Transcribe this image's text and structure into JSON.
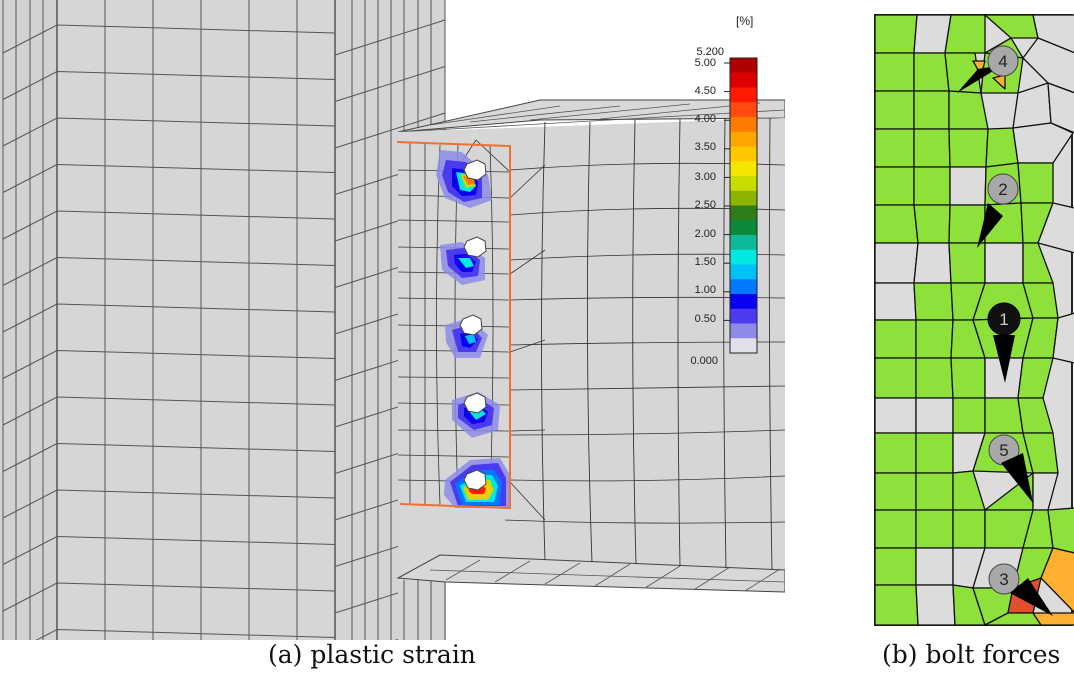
{
  "panel_a": {
    "caption": "(a) plastic strain",
    "legend": {
      "unit": "[%]",
      "max_label": "5.200",
      "min_label": "0.000",
      "tick_labels": [
        "5.00",
        "4.50",
        "4.00",
        "3.50",
        "3.00",
        "2.50",
        "2.00",
        "1.50",
        "1.00",
        "0.50"
      ],
      "colors": [
        "#b00000",
        "#dd0000",
        "#ff1a00",
        "#ff4a10",
        "#ff7a00",
        "#ffa500",
        "#ffc800",
        "#f5e600",
        "#c8dc00",
        "#8cb400",
        "#2e7d1a",
        "#0a8a3a",
        "#10b89a",
        "#00e8e0",
        "#00c0f8",
        "#0078ff",
        "#0a00f0",
        "#4a3af0",
        "#8c8ce8",
        "#e0e0e8"
      ],
      "range": [
        0.0,
        5.2
      ]
    },
    "end_plate_color": "#f07030",
    "bolt_count": 5
  },
  "panel_b": {
    "caption": "(b) bolt forces",
    "bolts": [
      {
        "label": "4",
        "fill": "#a8a8a8",
        "arrow": "up-left"
      },
      {
        "label": "2",
        "fill": "#a8a8a8",
        "arrow": "down-left"
      },
      {
        "label": "1",
        "fill": "#111111",
        "arrow": "down"
      },
      {
        "label": "5",
        "fill": "#a8a8a8",
        "arrow": "down-right"
      },
      {
        "label": "3",
        "fill": "#a8a8a8",
        "arrow": "right-down"
      }
    ],
    "colors": {
      "green": "#8ee03a",
      "gray": "#dcdcdc",
      "orange": "#ffb030",
      "red": "#e05030"
    }
  }
}
